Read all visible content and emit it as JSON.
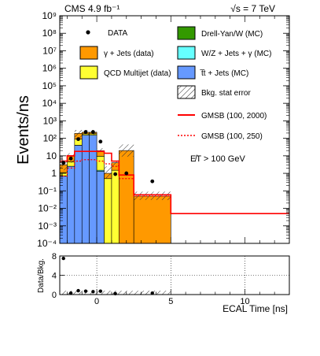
{
  "header": {
    "experiment": "CMS 4.9 fb⁻¹",
    "energy": "√s = 7 TeV"
  },
  "legend": {
    "data": "DATA",
    "gamma_jets": "γ + Jets (data)",
    "qcd": "QCD Multijet (data)",
    "drell_yan": "Drell-Yan/W (MC)",
    "wz_gamma": "W/Z + Jets + γ (MC)",
    "ttbar": "t̅t + Jets (MC)",
    "bkg_err": "Bkg. stat error",
    "gmsb_2000": "GMSB (100, 2000)",
    "gmsb_250": "GMSB (100, 250)"
  },
  "annotation": "E̸T > 100 GeV",
  "colors": {
    "gamma_jets": "#ff9900",
    "qcd": "#ffff33",
    "drell_yan": "#339900",
    "wz_gamma": "#66ffff",
    "ttbar": "#6699ff",
    "signal": "#ff0000"
  },
  "chart_data": [
    {
      "type": "bar",
      "subtype": "stacked-histogram",
      "xlabel": "ECAL Time [ns]",
      "ylabel": "Events/ns",
      "xlim": [
        -2.5,
        13
      ],
      "ylim": [
        0.0001,
        1000000000
      ],
      "log_y": true,
      "y_tick_labels": [
        "10⁻⁴",
        "10⁻³",
        "10⁻²",
        "10⁻¹",
        "1",
        "10",
        "10²",
        "10³",
        "10⁴",
        "10⁵",
        "10⁶",
        "10⁷",
        "10⁸",
        "10⁹"
      ],
      "bin_edges": [
        -2.5,
        -2,
        -1.5,
        -1,
        -0.5,
        0,
        0.5,
        1,
        1.5,
        2.5,
        5
      ],
      "series": [
        {
          "name": "t̅t + Jets (MC)",
          "color": "#6699ff",
          "values": [
            0.7,
            2.5,
            40,
            150,
            150,
            1.3,
            0,
            0,
            0,
            0
          ]
        },
        {
          "name": "W/Z + Jets + γ (MC)",
          "color": "#66ffff",
          "values": [
            0.01,
            0.03,
            0.1,
            0.3,
            0.3,
            0.2,
            0,
            0,
            0,
            0
          ]
        },
        {
          "name": "Drell-Yan/W (MC)",
          "color": "#339900",
          "values": [
            0,
            0,
            0,
            0,
            0,
            0,
            0,
            0,
            0,
            0
          ]
        },
        {
          "name": "QCD Multijet (data)",
          "color": "#ffff33",
          "values": [
            0.4,
            2,
            50,
            30,
            30,
            8,
            0.5,
            1.5,
            0,
            0
          ]
        },
        {
          "name": "γ + Jets (data)",
          "color": "#ff9900",
          "values": [
            2,
            5,
            100,
            40,
            40,
            10,
            0.5,
            2.5,
            20,
            0.05
          ]
        }
      ],
      "data_points": {
        "x": [
          -2.25,
          -1.75,
          -1.25,
          -0.75,
          -0.25,
          0.25,
          1.25,
          2,
          3.75
        ],
        "y": [
          4,
          7,
          90,
          230,
          230,
          65,
          0.9,
          1,
          0.35
        ]
      },
      "bkg_err_bins": [
        [
          -2.5,
          -2,
          1.5,
          6
        ],
        [
          -2,
          -1.5,
          4,
          14
        ],
        [
          -1.5,
          -1,
          100,
          300
        ],
        [
          -1,
          -0.5,
          150,
          300
        ],
        [
          -0.5,
          0,
          150,
          300
        ],
        [
          0,
          0.5,
          16,
          27
        ],
        [
          0.5,
          1,
          0.5,
          2.5
        ],
        [
          1,
          1.5,
          2.5,
          5.5
        ],
        [
          1.5,
          2.5,
          9,
          45
        ],
        [
          2.5,
          5,
          0.03,
          0.09
        ]
      ],
      "signal": [
        {
          "name": "GMSB (100, 2000)",
          "style": "solid",
          "edges": [
            -2.5,
            -2,
            -1.5,
            -1,
            -0.5,
            0,
            0.5,
            1,
            1.5,
            2.5,
            5,
            13
          ],
          "values": [
            5,
            10,
            18,
            18,
            18,
            18,
            14,
            5,
            0.8,
            0.06,
            0.005
          ]
        },
        {
          "name": "GMSB (100, 250)",
          "style": "dashed",
          "edges": [
            -2.5,
            -2,
            -1.5,
            -1,
            -0.5,
            0,
            0.5,
            1,
            1.5,
            2.5,
            5
          ],
          "values": [
            0.7,
            2,
            5,
            6,
            6,
            5,
            3.5,
            2.5,
            0.5,
            0.05
          ]
        }
      ]
    },
    {
      "type": "scatter",
      "ylabel": "Data/Bkg.",
      "xlim": [
        -2.5,
        13
      ],
      "ylim": [
        0,
        8
      ],
      "y_ticks": [
        0,
        4,
        8
      ],
      "x_ticks": [
        0,
        5,
        10
      ],
      "x_tick_labels": [
        "0",
        "5",
        "10"
      ],
      "grid": true,
      "points": {
        "x": [
          -2.25,
          -1.75,
          -1.25,
          -0.75,
          -0.25,
          0.25,
          1.25,
          3.75
        ],
        "y": [
          7.5,
          0.3,
          0.8,
          0.7,
          0.6,
          0.7,
          0.2,
          0.3
        ]
      },
      "err_band": [
        0,
        0.8
      ]
    }
  ]
}
